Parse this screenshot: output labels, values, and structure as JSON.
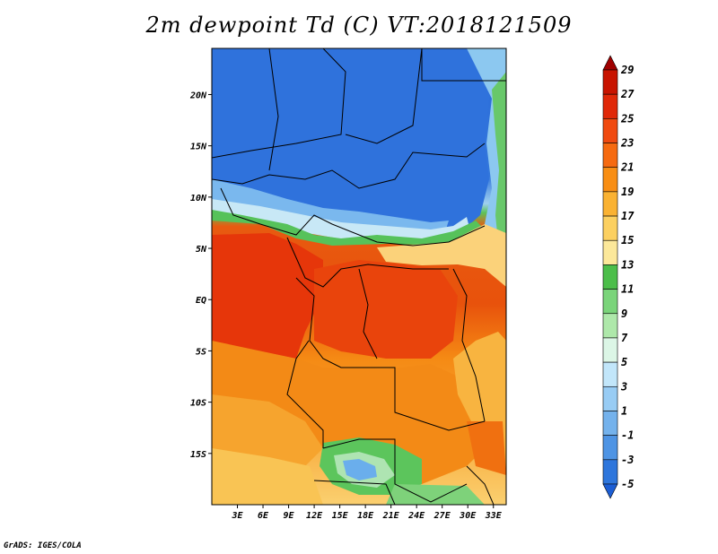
{
  "title": "2m dewpoint Td (C) VT:2018121509",
  "credit": "GrADS: IGES/COLA",
  "map": {
    "lon_range": [
      0,
      34.5
    ],
    "lat_range": [
      -20,
      24.5
    ],
    "x_ticks": [
      "3E",
      "6E",
      "9E",
      "12E",
      "15E",
      "18E",
      "21E",
      "24E",
      "27E",
      "30E",
      "33E"
    ],
    "y_ticks": [
      "20N",
      "15N",
      "10N",
      "5N",
      "EQ",
      "5S",
      "10S",
      "15S"
    ]
  },
  "colorbar": {
    "labels": [
      "29",
      "27",
      "25",
      "23",
      "21",
      "19",
      "17",
      "15",
      "13",
      "11",
      "9",
      "7",
      "5",
      "3",
      "1",
      "-1",
      "-3",
      "-5"
    ],
    "colors": [
      "#a00000",
      "#c81400",
      "#e02808",
      "#f04a10",
      "#f66a10",
      "#f88e14",
      "#fab232",
      "#fcd060",
      "#fce89a",
      "#4cbe4a",
      "#7ad47a",
      "#aee8aa",
      "#dcf6e6",
      "#c2e6fa",
      "#98ccf4",
      "#74b2ec",
      "#4e94e4",
      "#2e76dc",
      "#1c5ed4"
    ]
  }
}
